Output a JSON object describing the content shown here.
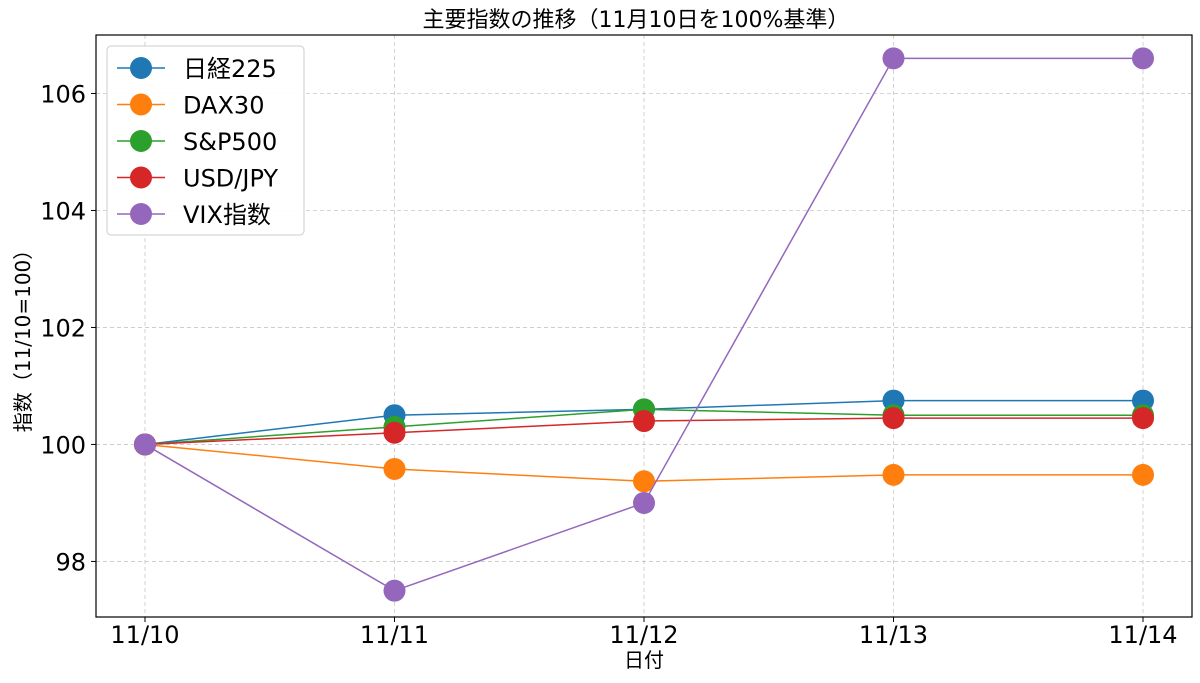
{
  "chart_data": {
    "type": "line",
    "title": "主要指数の推移（11月10日を100%基準）",
    "xlabel": "日付",
    "ylabel": "指数（11/10=100）",
    "categories": [
      "11/10",
      "11/11",
      "11/12",
      "11/13",
      "11/14"
    ],
    "ylim": [
      97.05,
      107.0
    ],
    "yticks": [
      98,
      100,
      102,
      104,
      106
    ],
    "grid": true,
    "legend_position": "top-left",
    "series": [
      {
        "name": "日経225",
        "color": "#1f77b4",
        "values": [
          100.0,
          100.5,
          100.6,
          100.75,
          100.75
        ]
      },
      {
        "name": "DAX30",
        "color": "#ff7f0e",
        "values": [
          100.0,
          99.58,
          99.37,
          99.48,
          99.48
        ]
      },
      {
        "name": "S&P500",
        "color": "#2ca02c",
        "values": [
          100.0,
          100.3,
          100.6,
          100.5,
          100.5
        ]
      },
      {
        "name": "USD/JPY",
        "color": "#d62728",
        "values": [
          100.0,
          100.2,
          100.4,
          100.45,
          100.45
        ]
      },
      {
        "name": "VIX指数",
        "color": "#9467bd",
        "values": [
          100.0,
          97.5,
          99.0,
          106.6,
          106.6
        ]
      }
    ]
  }
}
